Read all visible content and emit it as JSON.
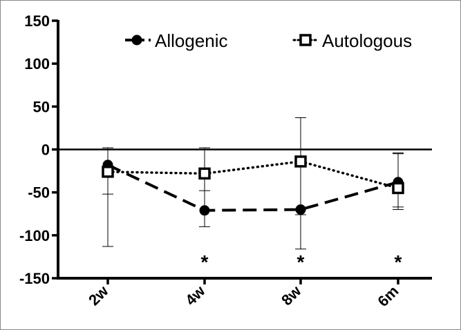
{
  "chart_data": {
    "type": "line",
    "categories": [
      "2w",
      "4w",
      "8w",
      "6m"
    ],
    "ylim": [
      -150,
      150
    ],
    "yticks": [
      150,
      100,
      50,
      0,
      -50,
      -100,
      -150
    ],
    "reference_line": 0,
    "grid": false,
    "legend_position": "top",
    "series": [
      {
        "name": "Allogenic",
        "marker": "filled-circle",
        "line_style": "dashed",
        "color": "#000000",
        "values": [
          -18,
          -71,
          -70,
          -38
        ],
        "error_upper": [
          2,
          2,
          -10,
          -4
        ],
        "error_lower": [
          -52,
          -90,
          -76,
          -70
        ]
      },
      {
        "name": "Autologous",
        "marker": "open-square",
        "line_style": "dotted",
        "color": "#000000",
        "values": [
          -26,
          -28,
          -14,
          -45
        ],
        "error_upper": [
          2,
          2,
          37,
          -5
        ],
        "error_lower": [
          -113,
          -48,
          -116,
          -67
        ]
      }
    ],
    "significance": [
      {
        "category": "4w",
        "label": "*"
      },
      {
        "category": "8w",
        "label": "*"
      },
      {
        "category": "6m",
        "label": "*"
      }
    ]
  }
}
